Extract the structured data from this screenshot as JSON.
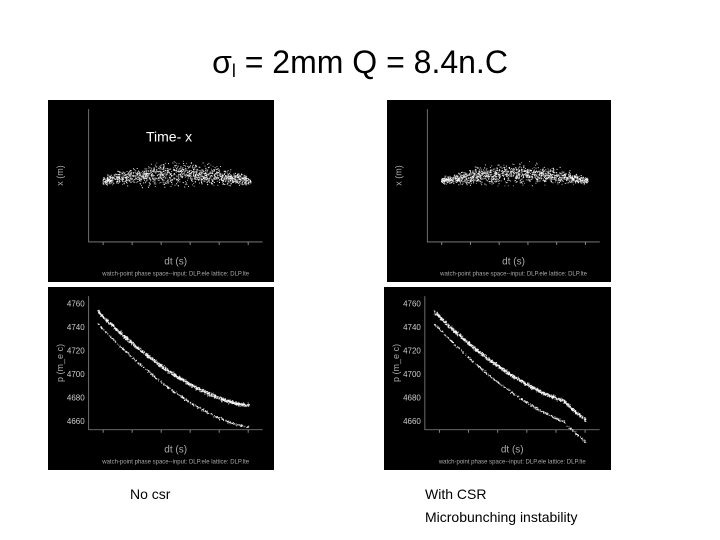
{
  "title": {
    "symbol": "σ",
    "subscript": "l",
    "text": "= 2mm  Q = 8.4n.C"
  },
  "panels": [
    {
      "label": "Time- x",
      "y_axis": "x (m)",
      "x_axis": "dt (s)",
      "caption": "watch-point phase space--input: DLP.ele  lattice: DLP.lte"
    },
    {
      "y_axis": "x (m)",
      "x_axis": "dt (s)",
      "caption": "watch-point phase space--input: DLP.ele  lattice: DLP.lte"
    },
    {
      "y_axis": "p (m_e c)",
      "x_axis": "dt (s)",
      "yticks": [
        4760,
        4740,
        4720,
        4700,
        4680,
        4660
      ],
      "caption": "watch-point phase space--input: DLP.ele  lattice: DLP.lte"
    },
    {
      "y_axis": "p (m_e c)",
      "x_axis": "dt (s)",
      "yticks": [
        4760,
        4740,
        4720,
        4700,
        4680,
        4660
      ],
      "caption": "watch-point phase space--input: DLP.ele  lattice: DLP.lte"
    }
  ],
  "captions": {
    "left": "No csr",
    "right": [
      "With CSR",
      "Microbunching instability"
    ]
  }
}
